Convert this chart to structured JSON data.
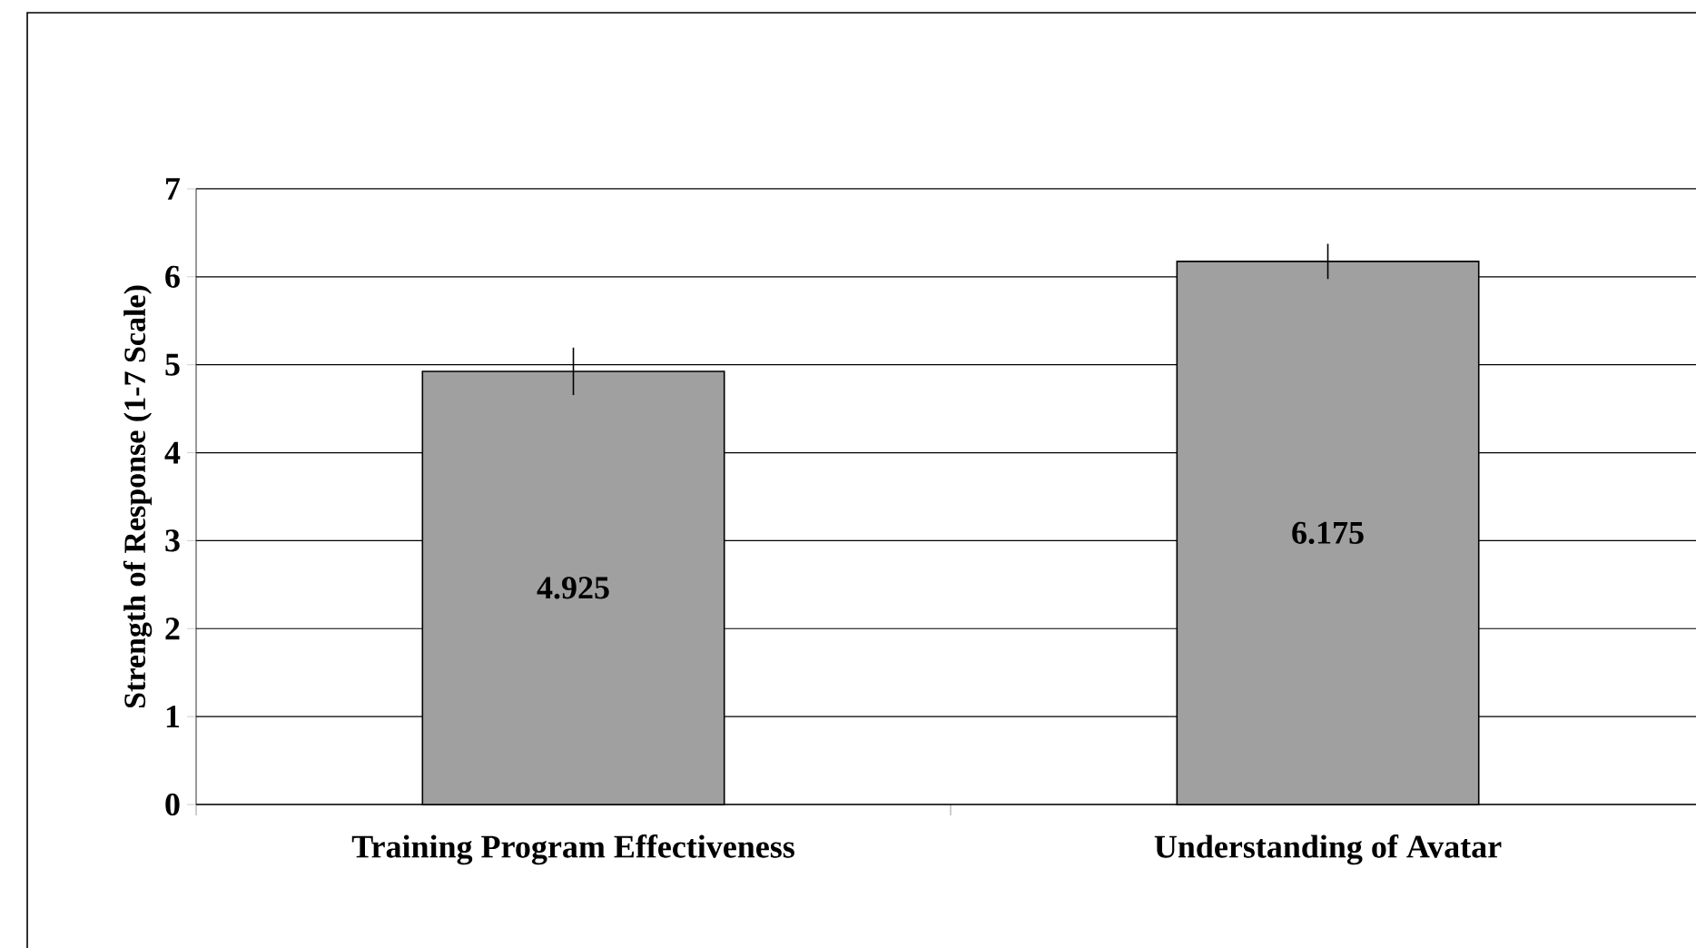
{
  "chart_data": {
    "type": "bar",
    "ylabel": "Strength of Response (1-7 Scale)",
    "categories": [
      "Training Program Effectiveness",
      "Understanding of Avatar"
    ],
    "values": [
      4.925,
      6.175
    ],
    "errors": [
      0.27,
      0.2
    ],
    "color": "#a0a0a0",
    "ylim": [
      0,
      7
    ],
    "yticks": [
      0,
      1,
      2,
      3,
      4,
      5,
      6,
      7
    ],
    "grid": "y",
    "data_labels": true
  }
}
